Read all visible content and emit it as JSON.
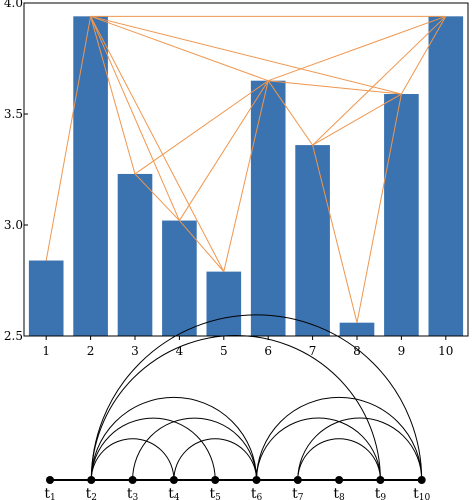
{
  "chart_data": [
    {
      "type": "bar",
      "categories": [
        "1",
        "2",
        "3",
        "4",
        "5",
        "6",
        "7",
        "8",
        "9",
        "10"
      ],
      "values": [
        2.84,
        3.94,
        3.23,
        3.02,
        2.79,
        3.65,
        3.36,
        2.56,
        3.59,
        3.94
      ],
      "ylim": [
        2.5,
        4.0
      ],
      "yticks": [
        2.5,
        3.0,
        3.5,
        4.0
      ],
      "ytick_labels": [
        "2.5",
        "3.0",
        "3.5",
        "4.0"
      ],
      "visibility_edges": [
        [
          1,
          2
        ],
        [
          2,
          3
        ],
        [
          2,
          4
        ],
        [
          2,
          5
        ],
        [
          2,
          6
        ],
        [
          2,
          9
        ],
        [
          2,
          10
        ],
        [
          3,
          4
        ],
        [
          3,
          6
        ],
        [
          4,
          5
        ],
        [
          4,
          6
        ],
        [
          5,
          6
        ],
        [
          6,
          7
        ],
        [
          6,
          9
        ],
        [
          6,
          10
        ],
        [
          7,
          8
        ],
        [
          7,
          9
        ],
        [
          7,
          10
        ],
        [
          8,
          9
        ],
        [
          9,
          10
        ]
      ],
      "bar_color": "#3a73b0",
      "edge_color": "#f0964d",
      "title": "",
      "xlabel": "",
      "ylabel": ""
    },
    {
      "type": "graph",
      "nodes": [
        {
          "base": "t",
          "sub": "1"
        },
        {
          "base": "t",
          "sub": "2"
        },
        {
          "base": "t",
          "sub": "3"
        },
        {
          "base": "t",
          "sub": "4"
        },
        {
          "base": "t",
          "sub": "5"
        },
        {
          "base": "t",
          "sub": "6"
        },
        {
          "base": "t",
          "sub": "7"
        },
        {
          "base": "t",
          "sub": "8"
        },
        {
          "base": "t",
          "sub": "9"
        },
        {
          "base": "t",
          "sub": "10"
        }
      ],
      "arcs": [
        [
          2,
          4
        ],
        [
          2,
          5
        ],
        [
          2,
          6
        ],
        [
          2,
          9
        ],
        [
          2,
          10
        ],
        [
          3,
          6
        ],
        [
          4,
          6
        ],
        [
          6,
          9
        ],
        [
          6,
          10
        ],
        [
          7,
          9
        ],
        [
          7,
          10
        ]
      ],
      "line_color": "#000000"
    }
  ]
}
